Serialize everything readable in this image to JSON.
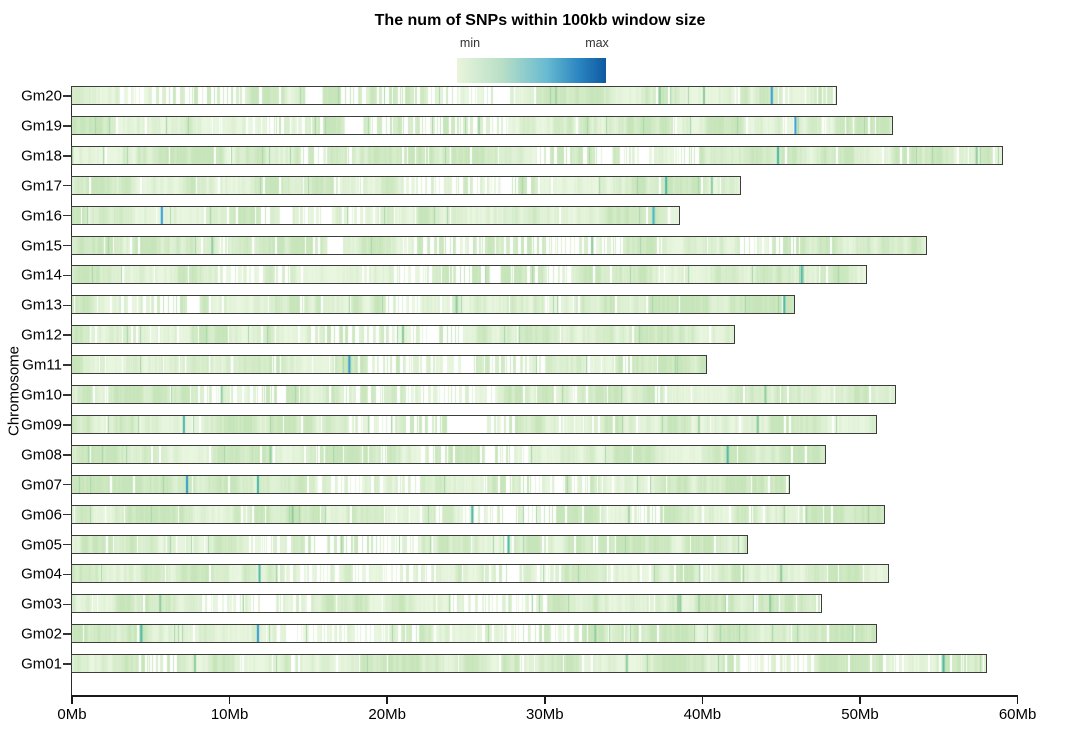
{
  "chart_data": {
    "type": "heatmap",
    "title": "The num of SNPs within 100kb window size",
    "subtitle": "",
    "window_size": "100kb",
    "legend": {
      "min_label": "min",
      "max_label": "max",
      "gradient_stops": [
        "#e9f5dc",
        "#b9dfc6",
        "#68bbd1",
        "#2a85c0",
        "#0e59a2"
      ]
    },
    "ylabel": "Chromosome",
    "x_unit": "Mb",
    "x_range_mb": [
      0,
      60
    ],
    "x_ticks": [
      "0Mb",
      "10Mb",
      "20Mb",
      "30Mb",
      "40Mb",
      "50Mb",
      "60Mb"
    ],
    "grid": false,
    "legend_position": "top-center",
    "palette": {
      "base": "#dcefd2",
      "stripe_light": "#e9f6e0",
      "stripe_mid": "#c7e5ba",
      "stripe_dark": "#a6d6a6",
      "blue": "#2f9ad2",
      "teal": "#47b5a4",
      "cyan": "#3db6cb",
      "dkgreen": "#8ccb9b",
      "gap_white": "#ffffff",
      "bar_border": "#3d3d3d",
      "axis": "#1a1a1a"
    },
    "chromosomes": [
      {
        "name": "Gm20",
        "length_mb": 48.5,
        "seed": 120,
        "sparse": [
          [
            3,
            12.5
          ],
          [
            17,
            26.5
          ]
        ],
        "gaps": [
          [
            14.8,
            15.9
          ],
          [
            26.7,
            27.8
          ]
        ],
        "highlights": [
          {
            "pos_mb": 44.4,
            "color": "blue"
          },
          {
            "pos_mb": 37.3,
            "color": "dkgreen"
          },
          {
            "pos_mb": 40.1,
            "color": "dkgreen"
          }
        ]
      },
      {
        "name": "Gm19",
        "length_mb": 52.0,
        "seed": 119,
        "sparse": [
          [
            11,
            16
          ],
          [
            19,
            28
          ]
        ],
        "gaps": [
          [
            17.3,
            18.5
          ]
        ],
        "highlights": [
          {
            "pos_mb": 45.9,
            "color": "blue"
          }
        ]
      },
      {
        "name": "Gm18",
        "length_mb": 59.0,
        "seed": 118,
        "sparse": [
          [
            14,
            18
          ],
          [
            29.5,
            40
          ]
        ],
        "gaps": [
          [
            33.6,
            34.3
          ],
          [
            36.0,
            36.6
          ]
        ],
        "highlights": [
          {
            "pos_mb": 44.8,
            "color": "teal"
          },
          {
            "pos_mb": 57.4,
            "color": "dkgreen"
          }
        ]
      },
      {
        "name": "Gm17",
        "length_mb": 42.4,
        "seed": 117,
        "sparse": [
          [
            21,
            31
          ]
        ],
        "gaps": [
          [
            27.2,
            27.9
          ]
        ],
        "highlights": [
          {
            "pos_mb": 37.7,
            "color": "teal"
          },
          {
            "pos_mb": 40.6,
            "color": "dkgreen"
          }
        ]
      },
      {
        "name": "Gm16",
        "length_mb": 38.5,
        "seed": 116,
        "sparse": [
          [
            11.5,
            19
          ]
        ],
        "gaps": [
          [
            13.2,
            14.0
          ],
          [
            15.8,
            16.5
          ]
        ],
        "highlights": [
          {
            "pos_mb": 5.7,
            "color": "blue"
          },
          {
            "pos_mb": 36.9,
            "color": "cyan"
          }
        ]
      },
      {
        "name": "Gm15",
        "length_mb": 54.2,
        "seed": 115,
        "sparse": [
          [
            16,
            17.5
          ],
          [
            21,
            35
          ],
          [
            42,
            46
          ]
        ],
        "gaps": [
          [
            16.2,
            17.2
          ]
        ],
        "highlights": [
          {
            "pos_mb": 8.9,
            "color": "dkgreen"
          },
          {
            "pos_mb": 33.0,
            "color": "dkgreen"
          }
        ]
      },
      {
        "name": "Gm14",
        "length_mb": 50.4,
        "seed": 114,
        "sparse": [
          [
            9,
            14
          ],
          [
            20,
            32
          ]
        ],
        "gaps": [
          [
            26.5,
            27.2
          ]
        ],
        "highlights": [
          {
            "pos_mb": 46.3,
            "color": "teal"
          }
        ]
      },
      {
        "name": "Gm13",
        "length_mb": 45.8,
        "seed": 113,
        "sparse": [
          [
            3,
            9
          ],
          [
            19.5,
            22
          ]
        ],
        "gaps": [
          [
            7.3,
            8.1
          ]
        ],
        "highlights": [
          {
            "pos_mb": 24.4,
            "color": "dkgreen"
          },
          {
            "pos_mb": 45.2,
            "color": "teal"
          }
        ]
      },
      {
        "name": "Gm12",
        "length_mb": 42.0,
        "seed": 112,
        "sparse": [
          [
            15,
            25
          ]
        ],
        "gaps": [
          [
            22.5,
            23.3
          ]
        ],
        "highlights": [
          {
            "pos_mb": 21.0,
            "color": "dkgreen"
          }
        ]
      },
      {
        "name": "Gm11",
        "length_mb": 40.2,
        "seed": 111,
        "sparse": [
          [
            18,
            30
          ]
        ],
        "gaps": [
          [
            24.8,
            25.5
          ]
        ],
        "highlights": [
          {
            "pos_mb": 17.6,
            "color": "blue"
          }
        ]
      },
      {
        "name": "Gm10",
        "length_mb": 52.2,
        "seed": 110,
        "sparse": [
          [
            8,
            13
          ],
          [
            18,
            27
          ]
        ],
        "gaps": [
          [
            13.0,
            13.6
          ]
        ],
        "highlights": [
          {
            "pos_mb": 9.5,
            "color": "dkgreen"
          },
          {
            "pos_mb": 44.0,
            "color": "dkgreen"
          }
        ]
      },
      {
        "name": "Gm09",
        "length_mb": 51.0,
        "seed": 109,
        "sparse": [
          [
            17,
            24
          ],
          [
            26,
            28
          ]
        ],
        "gaps": [
          [
            23.8,
            26.3
          ]
        ],
        "highlights": [
          {
            "pos_mb": 7.1,
            "color": "teal"
          },
          {
            "pos_mb": 43.5,
            "color": "dkgreen"
          }
        ]
      },
      {
        "name": "Gm08",
        "length_mb": 47.8,
        "seed": 108,
        "sparse": [
          [
            22,
            29
          ]
        ],
        "gaps": [
          [
            26.2,
            26.8
          ]
        ],
        "highlights": [
          {
            "pos_mb": 12.6,
            "color": "dkgreen"
          },
          {
            "pos_mb": 41.6,
            "color": "teal"
          }
        ]
      },
      {
        "name": "Gm07",
        "length_mb": 45.5,
        "seed": 107,
        "sparse": [
          [
            15,
            22
          ],
          [
            27,
            33
          ]
        ],
        "gaps": [
          [
            30.6,
            31.2
          ]
        ],
        "highlights": [
          {
            "pos_mb": 7.3,
            "color": "blue"
          },
          {
            "pos_mb": 11.8,
            "color": "teal"
          }
        ]
      },
      {
        "name": "Gm06",
        "length_mb": 51.5,
        "seed": 106,
        "sparse": [
          [
            23,
            31
          ],
          [
            35.5,
            38
          ]
        ],
        "gaps": [
          [
            27.4,
            28.0
          ]
        ],
        "highlights": [
          {
            "pos_mb": 14.0,
            "color": "dkgreen"
          },
          {
            "pos_mb": 25.4,
            "color": "teal"
          }
        ]
      },
      {
        "name": "Gm05",
        "length_mb": 42.8,
        "seed": 105,
        "sparse": [
          [
            11,
            22
          ]
        ],
        "gaps": [
          [
            15.5,
            16.2
          ]
        ],
        "highlights": [
          {
            "pos_mb": 27.7,
            "color": "teal"
          }
        ]
      },
      {
        "name": "Gm04",
        "length_mb": 51.8,
        "seed": 104,
        "sparse": [
          [
            13,
            23
          ],
          [
            26,
            31
          ]
        ],
        "gaps": [
          [
            27.8,
            28.4
          ]
        ],
        "highlights": [
          {
            "pos_mb": 11.9,
            "color": "teal"
          },
          {
            "pos_mb": 45.0,
            "color": "dkgreen"
          }
        ]
      },
      {
        "name": "Gm03",
        "length_mb": 47.5,
        "seed": 103,
        "sparse": [
          [
            8,
            15
          ],
          [
            24,
            30
          ]
        ],
        "gaps": [
          [
            12.1,
            12.8
          ]
        ],
        "highlights": [
          {
            "pos_mb": 5.6,
            "color": "dkgreen"
          },
          {
            "pos_mb": 38.6,
            "color": "dkgreen"
          },
          {
            "pos_mb": 44.3,
            "color": "dkgreen"
          }
        ]
      },
      {
        "name": "Gm02",
        "length_mb": 51.0,
        "seed": 102,
        "sparse": [
          [
            13,
            22
          ],
          [
            26,
            33
          ]
        ],
        "gaps": [
          [
            13.6,
            14.3
          ]
        ],
        "highlights": [
          {
            "pos_mb": 4.4,
            "color": "teal"
          },
          {
            "pos_mb": 11.8,
            "color": "blue"
          },
          {
            "pos_mb": 33.2,
            "color": "dkgreen"
          }
        ]
      },
      {
        "name": "Gm01",
        "length_mb": 58.0,
        "seed": 101,
        "sparse": [
          [
            4.5,
            7
          ],
          [
            13.5,
            15
          ],
          [
            42,
            47
          ],
          [
            51,
            53
          ]
        ],
        "gaps": [
          [
            42.4,
            42.9
          ]
        ],
        "highlights": [
          {
            "pos_mb": 7.8,
            "color": "dkgreen"
          },
          {
            "pos_mb": 35.2,
            "color": "dkgreen"
          },
          {
            "pos_mb": 55.3,
            "color": "teal"
          }
        ]
      }
    ]
  }
}
